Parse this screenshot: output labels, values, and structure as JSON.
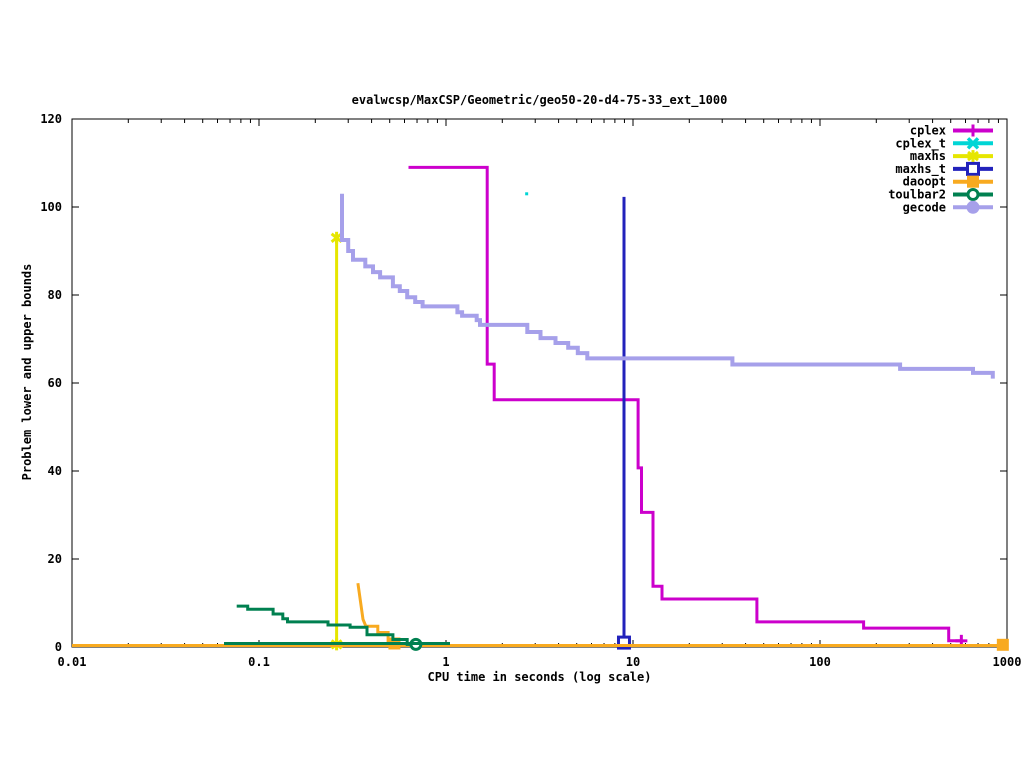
{
  "title": "evalwcsp/MaxCSP/Geometric/geo50-20-d4-75-33_ext_1000",
  "chart_data": {
    "type": "line",
    "x_scale": "log",
    "title": "evalwcsp/MaxCSP/Geometric/geo50-20-d4-75-33_ext_1000",
    "xlabel": "CPU time in seconds (log scale)",
    "ylabel": "Problem lower and upper bounds",
    "xlim": [
      0.01,
      1000
    ],
    "ylim": [
      0,
      120
    ],
    "grid": false,
    "legend_position": "top-right-inside",
    "x_ticks": [
      {
        "value": 0.01,
        "label": "0.01"
      },
      {
        "value": 0.1,
        "label": "0.1"
      },
      {
        "value": 1,
        "label": "1"
      },
      {
        "value": 10,
        "label": "10"
      },
      {
        "value": 100,
        "label": "100"
      },
      {
        "value": 1000,
        "label": "1000"
      }
    ],
    "y_ticks": [
      {
        "value": 0,
        "label": "0"
      },
      {
        "value": 20,
        "label": "20"
      },
      {
        "value": 40,
        "label": "40"
      },
      {
        "value": 60,
        "label": "60"
      },
      {
        "value": 80,
        "label": "80"
      },
      {
        "value": 100,
        "label": "100"
      },
      {
        "value": 120,
        "label": "120"
      }
    ],
    "series": [
      {
        "name": "cplex",
        "color": "#cc00cc",
        "marker": "plus",
        "line_width": 3,
        "legend": true,
        "points": [
          [
            0.63,
            109
          ],
          [
            1.66,
            109
          ],
          [
            1.66,
            64.3
          ],
          [
            1.81,
            64.3
          ],
          [
            1.81,
            56.2
          ],
          [
            10.65,
            56.2
          ],
          [
            10.65,
            40.7
          ],
          [
            11.1,
            40.7
          ],
          [
            11.1,
            30.6
          ],
          [
            12.8,
            30.6
          ],
          [
            12.8,
            13.8
          ],
          [
            14.3,
            13.8
          ],
          [
            14.3,
            10.9
          ],
          [
            46,
            10.9
          ],
          [
            46,
            5.7
          ],
          [
            171,
            5.7
          ],
          [
            171,
            4.3
          ],
          [
            488,
            4.3
          ],
          [
            488,
            1.4
          ],
          [
            570,
            1.4
          ]
        ],
        "marker_points": [
          [
            570,
            1.4
          ]
        ]
      },
      {
        "name": "cplex_t",
        "color": "#00d5d5",
        "marker": "x",
        "plot_marker": "dot",
        "line_width": 3,
        "legend": true,
        "points": [],
        "marker_points": [
          [
            2.7,
            103
          ]
        ]
      },
      {
        "name": "maxhs",
        "color": "#e6e600",
        "marker": "asterisk",
        "line_width": 3,
        "legend": true,
        "points": [
          [
            0.26,
            93
          ],
          [
            0.26,
            0.6
          ]
        ],
        "marker_points": [
          [
            0.26,
            93
          ],
          [
            0.26,
            0.6
          ]
        ]
      },
      {
        "name": "maxhs_t",
        "color": "#2222bb",
        "marker": "square-open",
        "line_width": 3,
        "legend": true,
        "points": [
          [
            8.95,
            102.3
          ],
          [
            8.95,
            0.5
          ]
        ],
        "marker_points": [
          [
            8.95,
            1.0
          ]
        ]
      },
      {
        "name": "daoopt",
        "color": "#f8aa20",
        "marker": "square-filled",
        "line_width": 3,
        "legend": true,
        "points": [
          [
            0.338,
            14.5
          ],
          [
            0.36,
            6.3
          ],
          [
            0.373,
            4.7
          ],
          [
            0.432,
            4.7
          ],
          [
            0.432,
            3.3
          ],
          [
            0.49,
            3.3
          ],
          [
            0.49,
            1.2
          ],
          [
            0.53,
            0.8
          ]
        ],
        "marker_points": [
          [
            0.53,
            0.8
          ],
          [
            950,
            0.5
          ]
        ]
      },
      {
        "name": "daoopt_lower_bound",
        "color": "#f8aa20",
        "marker": "none",
        "line_width": 3,
        "legend": false,
        "points": [
          [
            0.01,
            0.35
          ],
          [
            985,
            0.35
          ]
        ],
        "marker_points": []
      },
      {
        "name": "toulbar2",
        "color": "#008050",
        "marker": "circle-open",
        "line_width": 3,
        "legend": true,
        "points": [
          [
            0.076,
            9.3
          ],
          [
            0.087,
            9.3
          ],
          [
            0.087,
            8.6
          ],
          [
            0.119,
            8.6
          ],
          [
            0.119,
            7.5
          ],
          [
            0.134,
            7.5
          ],
          [
            0.134,
            6.4
          ],
          [
            0.142,
            6.4
          ],
          [
            0.142,
            5.7
          ],
          [
            0.234,
            5.7
          ],
          [
            0.234,
            5.0
          ],
          [
            0.307,
            5.0
          ],
          [
            0.307,
            4.5
          ],
          [
            0.378,
            4.5
          ],
          [
            0.378,
            2.8
          ],
          [
            0.52,
            2.8
          ],
          [
            0.52,
            1.7
          ],
          [
            0.62,
            1.7
          ],
          [
            0.62,
            0.6
          ],
          [
            0.69,
            0.6
          ]
        ],
        "marker_points": [
          [
            0.69,
            0.6
          ]
        ]
      },
      {
        "name": "toulbar2_lower_bound",
        "color": "#008050",
        "marker": "none",
        "line_width": 3,
        "legend": false,
        "points": [
          [
            0.065,
            0.8
          ],
          [
            1.05,
            0.8
          ]
        ],
        "marker_points": []
      },
      {
        "name": "gecode",
        "color": "#a6a0ea",
        "marker": "circle-filled",
        "line_width": 4,
        "legend": true,
        "points": [
          [
            0.278,
            103
          ],
          [
            0.278,
            92.5
          ],
          [
            0.3,
            92.5
          ],
          [
            0.3,
            90
          ],
          [
            0.318,
            90
          ],
          [
            0.318,
            88
          ],
          [
            0.37,
            88
          ],
          [
            0.37,
            86.5
          ],
          [
            0.407,
            86.5
          ],
          [
            0.407,
            85.2
          ],
          [
            0.444,
            85.2
          ],
          [
            0.444,
            84
          ],
          [
            0.52,
            84
          ],
          [
            0.52,
            82
          ],
          [
            0.566,
            82
          ],
          [
            0.566,
            80.9
          ],
          [
            0.62,
            80.9
          ],
          [
            0.62,
            79.5
          ],
          [
            0.684,
            79.5
          ],
          [
            0.684,
            78.4
          ],
          [
            0.75,
            78.4
          ],
          [
            0.75,
            77.4
          ],
          [
            1.15,
            77.4
          ],
          [
            1.15,
            76.1
          ],
          [
            1.22,
            76.1
          ],
          [
            1.22,
            75.3
          ],
          [
            1.46,
            75.3
          ],
          [
            1.46,
            74.3
          ],
          [
            1.52,
            74.3
          ],
          [
            1.52,
            73.2
          ],
          [
            2.72,
            73.2
          ],
          [
            2.72,
            71.6
          ],
          [
            3.2,
            71.6
          ],
          [
            3.2,
            70.2
          ],
          [
            3.85,
            70.2
          ],
          [
            3.85,
            69.1
          ],
          [
            4.5,
            69.1
          ],
          [
            4.5,
            68
          ],
          [
            5.07,
            68
          ],
          [
            5.07,
            66.8
          ],
          [
            5.7,
            66.8
          ],
          [
            5.7,
            65.6
          ],
          [
            34,
            65.6
          ],
          [
            34,
            64.2
          ],
          [
            268,
            64.2
          ],
          [
            268,
            63.2
          ],
          [
            658,
            63.2
          ],
          [
            658,
            62.3
          ],
          [
            840,
            62.3
          ],
          [
            840,
            61
          ]
        ],
        "marker_points": []
      }
    ]
  }
}
